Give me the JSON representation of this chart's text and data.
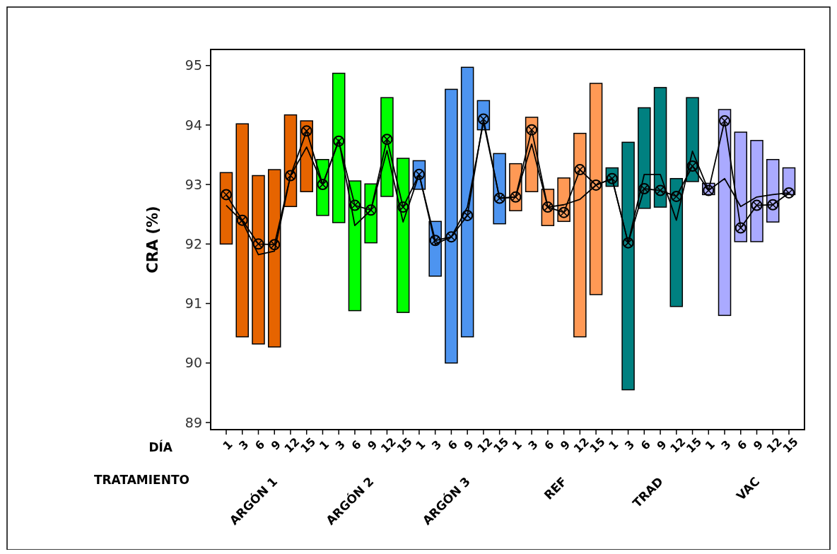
{
  "chart_data": {
    "type": "bar",
    "ylabel": "CRA (%)",
    "xlabel": "DÍA",
    "categories": [
      "1",
      "3",
      "6",
      "9",
      "12",
      "15",
      "1",
      "3",
      "6",
      "9",
      "12",
      "15",
      "1",
      "3",
      "6",
      "9",
      "12",
      "15",
      "1",
      "3",
      "6",
      "9",
      "12",
      "15",
      "1",
      "3",
      "6",
      "9",
      "12",
      "15",
      "1",
      "3",
      "6",
      "9",
      "12",
      "15"
    ],
    "annotations": [
      "TRATAMIENTO",
      "ARGÓN 1",
      "ARGÓN 2",
      "ARGÓN 3",
      "REF",
      "TRAD",
      "VAC"
    ],
    "ylim": [
      88.88,
      95.27
    ],
    "yticks": [
      89,
      90,
      91,
      92,
      93,
      94,
      95
    ],
    "series": [
      {
        "base": [
          92.0,
          90.44,
          90.32,
          90.27,
          92.63,
          92.88,
          92.48,
          92.36,
          90.88,
          92.02,
          92.8,
          90.85,
          92.92,
          91.46,
          90.0,
          90.44,
          93.92,
          92.34,
          92.56,
          92.88,
          92.31,
          92.38,
          90.44,
          91.15,
          92.97,
          89.55,
          92.6,
          92.62,
          90.95,
          93.05,
          92.83,
          90.8,
          92.04,
          92.04,
          92.37,
          92.83
        ],
        "values": [
          1.2,
          3.58,
          2.83,
          2.98,
          1.54,
          1.19,
          0.94,
          2.51,
          2.18,
          0.99,
          1.66,
          2.59,
          0.48,
          0.92,
          4.6,
          4.53,
          0.49,
          1.18,
          0.79,
          1.25,
          0.61,
          0.73,
          3.42,
          3.55,
          0.31,
          4.16,
          1.69,
          2.01,
          2.15,
          1.41,
          0.19,
          3.46,
          1.84,
          1.7,
          1.05,
          0.45
        ],
        "colors": [
          "#e66400",
          "#e66400",
          "#e66400",
          "#e66400",
          "#e66400",
          "#e66400",
          "#00ff00",
          "#00ff00",
          "#00ff00",
          "#00ff00",
          "#00ff00",
          "#00ff00",
          "#4d94f0",
          "#4d94f0",
          "#4d94f0",
          "#4d94f0",
          "#4d94f0",
          "#4d94f0",
          "#ff9955",
          "#ff9955",
          "#ff9955",
          "#ff9955",
          "#ff9955",
          "#ff9955",
          "#008080",
          "#008080",
          "#008080",
          "#008080",
          "#008080",
          "#008080",
          "#aaaaff",
          "#aaaaff",
          "#aaaaff",
          "#aaaaff",
          "#aaaaff",
          "#aaaaff"
        ]
      },
      {
        "type": "line",
        "color": "#000000",
        "marker": "circle",
        "values": [
          92.83,
          92.4,
          92.0,
          91.99,
          93.15,
          93.9,
          93.0,
          93.73,
          92.65,
          92.57,
          93.76,
          92.62,
          93.17,
          92.06,
          92.12,
          92.48,
          94.1,
          92.77,
          92.79,
          93.92,
          92.62,
          92.53,
          93.25,
          92.99,
          93.1,
          92.02,
          92.93,
          92.9,
          92.8,
          93.31,
          92.9,
          94.07,
          92.27,
          92.65,
          92.66,
          92.86
        ]
      },
      {
        "type": "line",
        "color": "#000000",
        "marker": "none",
        "values": [
          92.65,
          92.38,
          91.82,
          91.88,
          93.15,
          93.63,
          93.0,
          93.75,
          92.31,
          92.57,
          93.57,
          92.37,
          93.17,
          92.0,
          92.12,
          92.62,
          94.05,
          92.77,
          92.79,
          93.68,
          92.62,
          92.66,
          92.75,
          92.99,
          93.1,
          92.02,
          93.17,
          93.17,
          92.4,
          93.56,
          92.9,
          93.1,
          92.63,
          92.79,
          92.83,
          92.86
        ]
      }
    ]
  }
}
